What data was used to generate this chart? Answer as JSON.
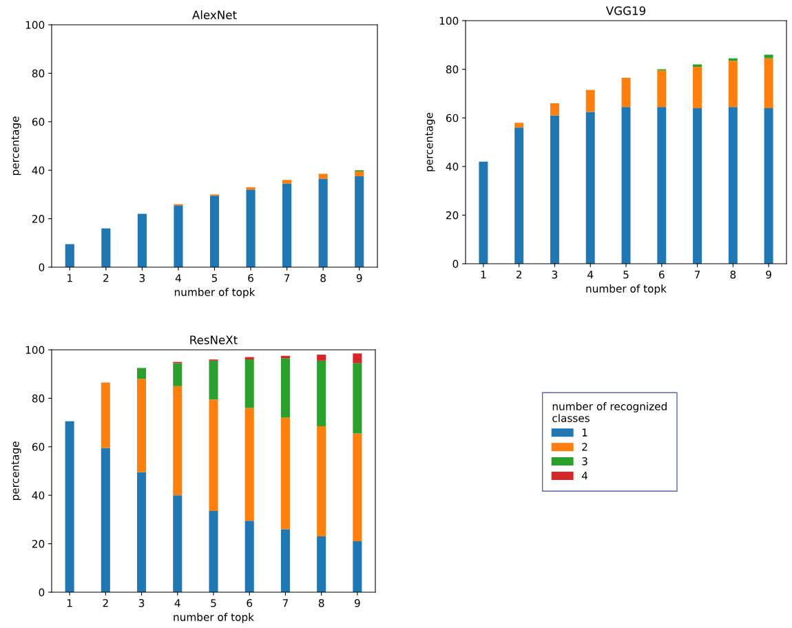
{
  "chart_data": [
    {
      "type": "bar",
      "title": "AlexNet",
      "xlabel": "number of topk",
      "ylabel": "percentage",
      "stacked": true,
      "categories": [
        "1",
        "2",
        "3",
        "4",
        "5",
        "6",
        "7",
        "8",
        "9"
      ],
      "ylim": [
        0,
        100
      ],
      "yticks": [
        0,
        20,
        40,
        60,
        80,
        100
      ],
      "grid": false,
      "legend": false,
      "series": [
        {
          "color": "#1f77b4",
          "values": [
            9.5,
            16,
            22,
            25.5,
            29.5,
            32,
            34.5,
            36.5,
            37.5
          ]
        },
        {
          "color": "#ff7f0e",
          "values": [
            0,
            0,
            0,
            0.5,
            0.5,
            1,
            1.5,
            2,
            2
          ]
        },
        {
          "color": "#2ca02c",
          "values": [
            0,
            0,
            0,
            0,
            0,
            0,
            0,
            0,
            0.5
          ]
        }
      ]
    },
    {
      "type": "bar",
      "title": "VGG19",
      "xlabel": "number of topk",
      "ylabel": "percentage",
      "stacked": true,
      "categories": [
        "1",
        "2",
        "3",
        "4",
        "5",
        "6",
        "7",
        "8",
        "9"
      ],
      "ylim": [
        0,
        100
      ],
      "yticks": [
        0,
        20,
        40,
        60,
        80,
        100
      ],
      "grid": false,
      "legend": false,
      "series": [
        {
          "color": "#1f77b4",
          "values": [
            42,
            56,
            61,
            62.5,
            64.5,
            64.5,
            64,
            64.5,
            64
          ]
        },
        {
          "color": "#ff7f0e",
          "values": [
            0,
            2,
            5,
            9,
            12,
            15,
            17,
            19,
            20.5
          ]
        },
        {
          "color": "#2ca02c",
          "values": [
            0,
            0,
            0,
            0,
            0,
            0.5,
            1,
            1,
            1.5
          ]
        }
      ]
    },
    {
      "type": "bar",
      "title": "ResNeXt",
      "xlabel": "number of topk",
      "ylabel": "percentage",
      "stacked": true,
      "categories": [
        "1",
        "2",
        "3",
        "4",
        "5",
        "6",
        "7",
        "8",
        "9"
      ],
      "ylim": [
        0,
        100
      ],
      "yticks": [
        0,
        20,
        40,
        60,
        80,
        100
      ],
      "grid": false,
      "legend": "right",
      "legend_title": "number of recognized\nclasses",
      "series": [
        {
          "name": "1",
          "color": "#1f77b4",
          "values": [
            70.5,
            59.5,
            49.5,
            40,
            33.5,
            29.5,
            26,
            23,
            21
          ]
        },
        {
          "name": "2",
          "color": "#ff7f0e",
          "values": [
            0,
            27,
            38.5,
            45,
            46,
            46.5,
            46,
            45.5,
            44.5
          ]
        },
        {
          "name": "3",
          "color": "#2ca02c",
          "values": [
            0,
            0,
            4.5,
            9.5,
            16,
            20,
            24.5,
            27,
            29
          ]
        },
        {
          "name": "4",
          "color": "#d62728",
          "values": [
            0,
            0,
            0,
            0.5,
            0.5,
            1,
            1,
            2.5,
            4
          ]
        }
      ]
    }
  ]
}
